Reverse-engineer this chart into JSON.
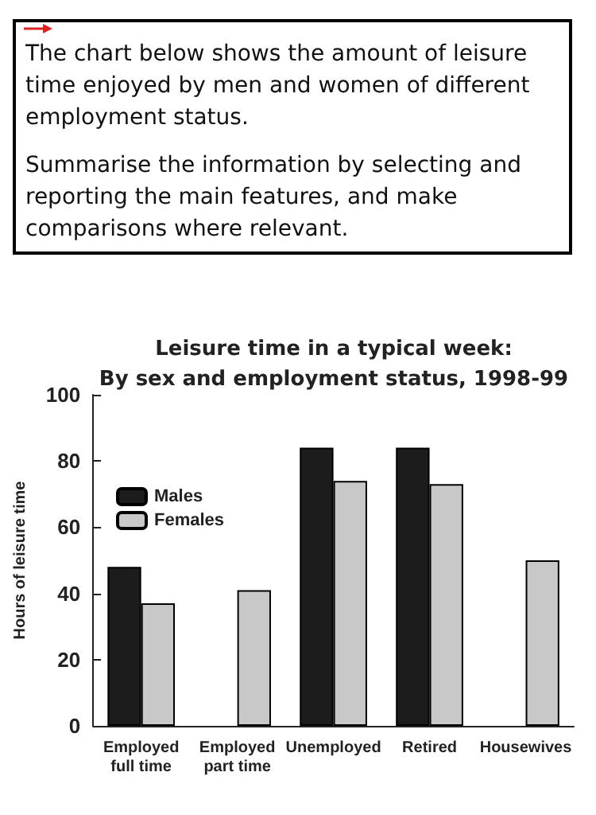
{
  "chart_data": {
    "type": "bar",
    "title": "Leisure time in a typical week:",
    "subtitle": "By sex and employment status, 1998-99",
    "ylabel": "Hours of leisure time",
    "annotations": [
      "The chart below shows the amount of leisure time enjoyed by men and women of different employment status.",
      "Summarise the information by selecting and reporting the main features, and make comparisons where relevant."
    ],
    "categories": [
      "Employed\nfull time",
      "Employed\npart time",
      "Unemployed",
      "Retired",
      "Housewives"
    ],
    "series": [
      {
        "name": "Males",
        "color": "#1c1c1c",
        "values": [
          48,
          null,
          84,
          84,
          null
        ]
      },
      {
        "name": "Females",
        "color": "#c8c8c8",
        "values": [
          37,
          41,
          74,
          73,
          50
        ]
      }
    ],
    "ylim": [
      0,
      100
    ],
    "yticks": [
      0,
      20,
      40,
      60,
      80,
      100
    ],
    "grid": false,
    "legend": "top left"
  }
}
